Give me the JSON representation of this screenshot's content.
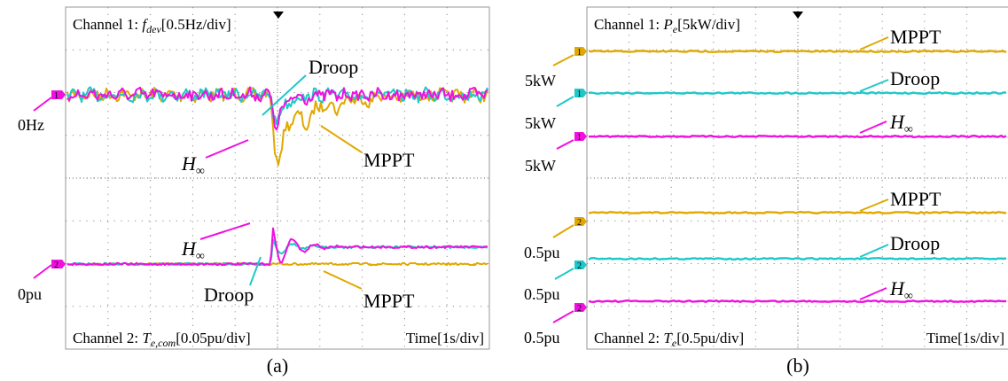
{
  "colors": {
    "mppt": "#E0A800",
    "droop": "#1EC8C8",
    "hinf": "#F010E0",
    "grid": "#8c8c8c",
    "frame": "#a8a8a8"
  },
  "panel_a": {
    "caption": "(a)",
    "ch1_prefix": "Channel 1: ",
    "ch1_var": "f",
    "ch1_sub": "dev",
    "ch1_scale": "[0.5Hz/div]",
    "ch2_prefix": "Channel 2: ",
    "ch2_var": "T",
    "ch2_sub": "e,com",
    "ch2_scale": "[0.05pu/div]",
    "time_label": "Time[1s/div]",
    "ch1_ref": "0Hz",
    "ch2_ref": "0pu",
    "marker1": "1",
    "marker2": "2",
    "ann_droop_top": "Droop",
    "ann_mppt_top": "MPPT",
    "ann_hinf_top": "H",
    "ann_hinf_top_sub": "∞",
    "ann_hinf_bot": "H",
    "ann_hinf_bot_sub": "∞",
    "ann_droop_bot": "Droop",
    "ann_mppt_bot": "MPPT"
  },
  "panel_b": {
    "caption": "(b)",
    "ch1_prefix": "Channel 1: ",
    "ch1_var": "P",
    "ch1_sub": "e",
    "ch1_scale": "[5kW/div]",
    "ch2_prefix": "Channel 2: ",
    "ch2_var": "T",
    "ch2_sub": "e",
    "ch2_scale": "[0.5pu/div]",
    "time_label": "Time[1s/div]",
    "ref_top": [
      "5kW",
      "5kW",
      "5kW"
    ],
    "ref_bot": [
      "0.5pu",
      "0.5pu",
      "0.5pu"
    ],
    "marker1": "1",
    "marker2": "2",
    "ann_mppt_top": "MPPT",
    "ann_droop_top": "Droop",
    "ann_hinf_top": "H",
    "ann_hinf_top_sub": "∞",
    "ann_mppt_bot": "MPPT",
    "ann_droop_bot": "Droop",
    "ann_hinf_bot": "H",
    "ann_hinf_bot_sub": "∞"
  },
  "chart_data": [
    {
      "type": "line",
      "panel": "(a)",
      "time_per_div_s": 1,
      "divisions_x": 10,
      "channel_1": {
        "variable": "f_dev",
        "scale": "0.5Hz/div",
        "reference": "0Hz",
        "disturbance_time_s": 4.8,
        "series": [
          {
            "name": "MPPT",
            "pre_level_div": 0,
            "dip_div": -1.3,
            "recovery": "oscillatory, slow"
          },
          {
            "name": "Droop",
            "pre_level_div": 0,
            "dip_div": -1.1,
            "recovery": "fast"
          },
          {
            "name": "H∞",
            "pre_level_div": 0,
            "dip_div": -1.4,
            "recovery": "fast"
          }
        ]
      },
      "channel_2": {
        "variable": "T_e,com",
        "scale": "0.05pu/div",
        "reference": "0pu",
        "disturbance_time_s": 4.8,
        "series": [
          {
            "name": "MPPT",
            "pre_level_div": 0,
            "post_level_div": 0
          },
          {
            "name": "Droop",
            "pre_level_div": 0,
            "post_level_div": 0.4
          },
          {
            "name": "H∞",
            "pre_level_div": 0,
            "peak_div": 1.0,
            "post_level_div": 0.4
          }
        ]
      }
    },
    {
      "type": "line",
      "panel": "(b)",
      "time_per_div_s": 1,
      "divisions_x": 10,
      "channel_1": {
        "variable": "P_e",
        "scale": "5kW/div",
        "series": [
          {
            "name": "MPPT",
            "reference": "5kW",
            "level_div": 0
          },
          {
            "name": "Droop",
            "reference": "5kW",
            "level_div": 0
          },
          {
            "name": "H∞",
            "reference": "5kW",
            "level_div": 0
          }
        ]
      },
      "channel_2": {
        "variable": "T_e",
        "scale": "0.5pu/div",
        "series": [
          {
            "name": "MPPT",
            "reference": "0.5pu",
            "level_div": 0
          },
          {
            "name": "Droop",
            "reference": "0.5pu",
            "level_div": 0
          },
          {
            "name": "H∞",
            "reference": "0.5pu",
            "level_div": 0
          }
        ]
      }
    }
  ]
}
